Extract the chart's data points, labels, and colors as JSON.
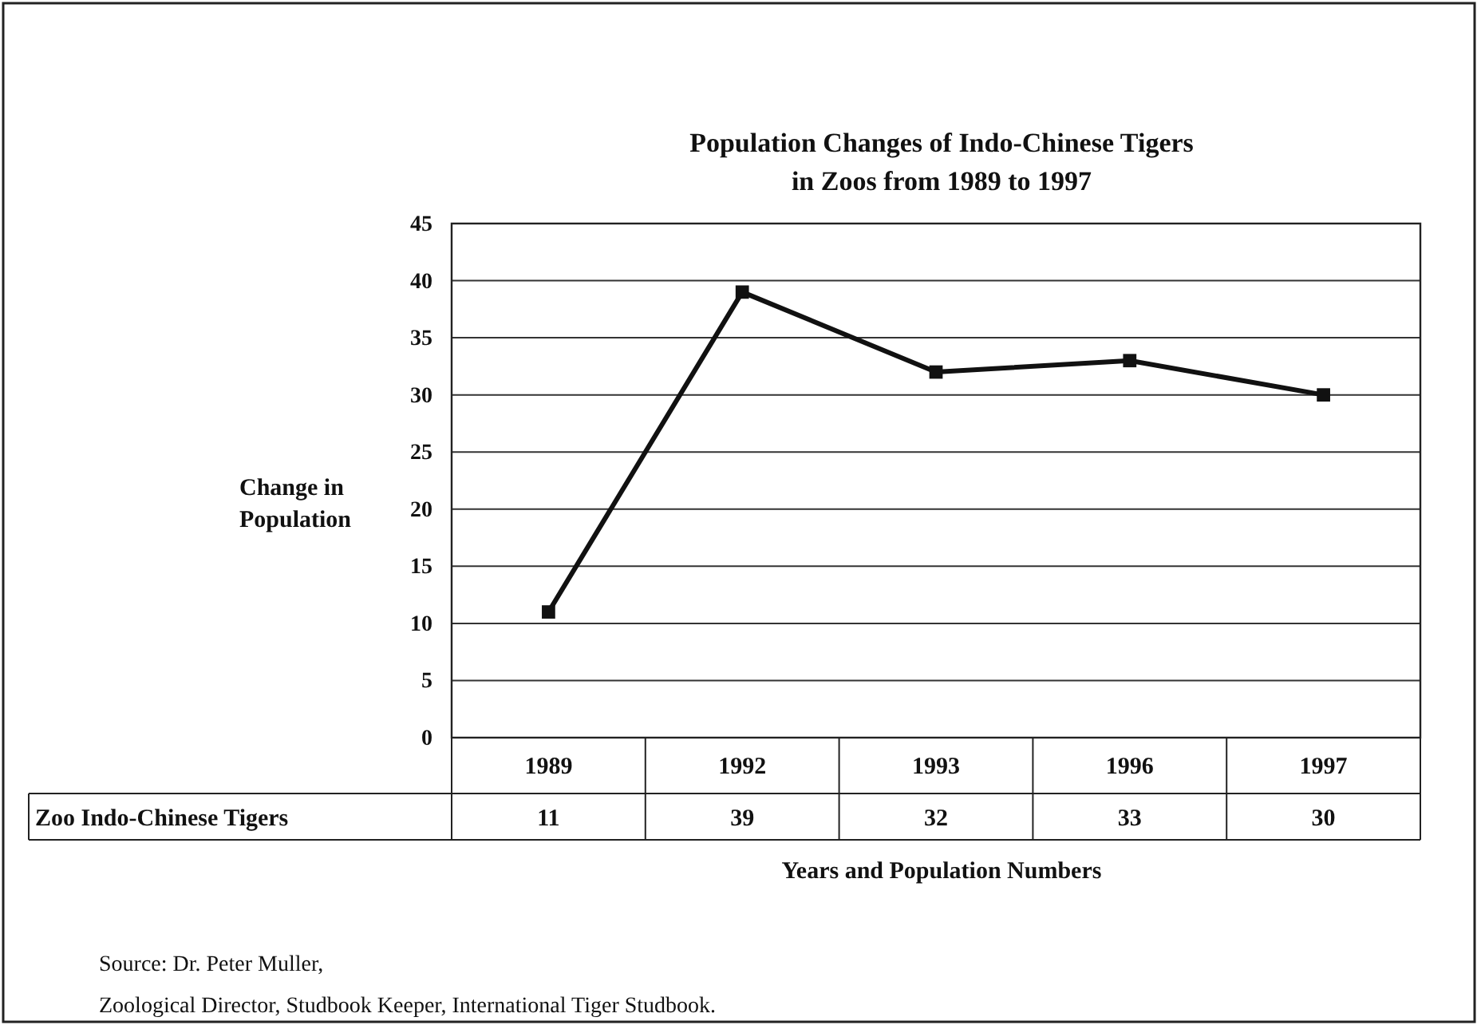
{
  "chart_data": {
    "type": "line",
    "title": "Population Changes of Indo-Chinese Tigers\nin Zoos from 1989 to 1997",
    "xlabel": "Years and Population Numbers",
    "ylabel": "Change in\nPopulation",
    "categories": [
      "1989",
      "1992",
      "1993",
      "1996",
      "1997"
    ],
    "series": [
      {
        "name": "Zoo Indo-Chinese Tigers",
        "color": "#111111",
        "values": [
          11,
          39,
          32,
          33,
          30
        ]
      }
    ],
    "ylim": [
      0,
      45
    ],
    "yticks": [
      0,
      5,
      10,
      15,
      20,
      25,
      30,
      35,
      40,
      45
    ],
    "grid": "y",
    "marker": "square",
    "line_style": "solid",
    "data_labels": true,
    "annotations": [
      "Source:  Dr. Peter Muller,",
      "Zoological Director,  Studbook Keeper, International Tiger Studbook."
    ]
  }
}
